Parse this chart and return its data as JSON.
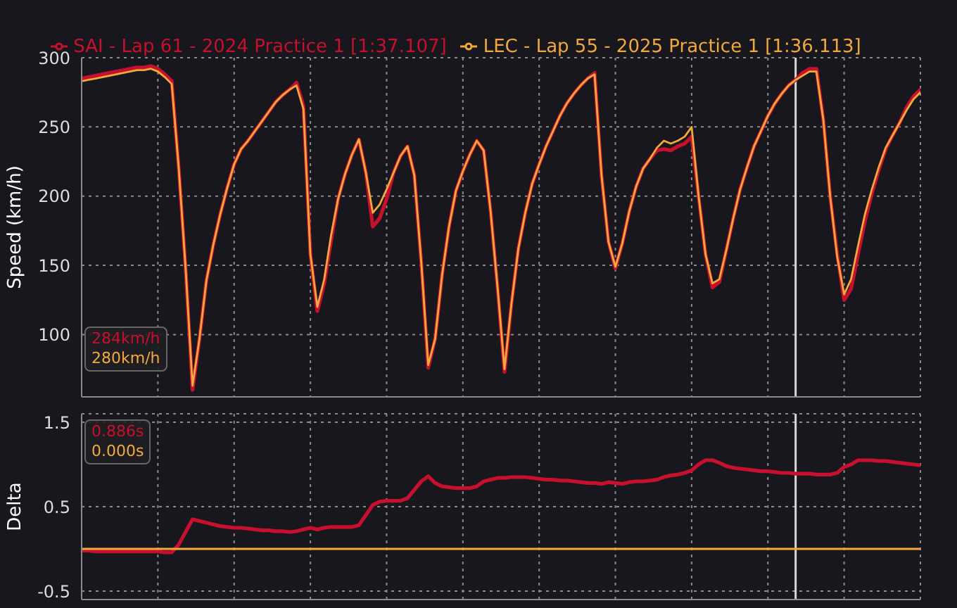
{
  "chart_data": [
    {
      "type": "line",
      "ylabel": "Speed (km/h)",
      "legend": "top",
      "grid": true,
      "tick_labels": "y",
      "marker": "none",
      "line_style": "solid",
      "ylim": [
        55,
        300
      ],
      "yticks": [
        100,
        150,
        200,
        250,
        300
      ],
      "categories": [
        null,
        null,
        null,
        null,
        null,
        null,
        null,
        null,
        null,
        null,
        null,
        null,
        null,
        null,
        null,
        null,
        null,
        null,
        null,
        null,
        null,
        null,
        null,
        null,
        null,
        null,
        null,
        null,
        null,
        null,
        null,
        null,
        null,
        null,
        null,
        null,
        null,
        null,
        null,
        null,
        null,
        null,
        null,
        null,
        null,
        null,
        null,
        null,
        null,
        null,
        null,
        null,
        null,
        null,
        null,
        null,
        null,
        null,
        null,
        null,
        null,
        null,
        null,
        null,
        null,
        null,
        null,
        null,
        null,
        null,
        null,
        null,
        null,
        null,
        null,
        null,
        null,
        null,
        null,
        null,
        null,
        null,
        null,
        null,
        null,
        null,
        null,
        null,
        null,
        null,
        null,
        null,
        null,
        null,
        null,
        null,
        null,
        null,
        null,
        null,
        null,
        null,
        null,
        null,
        null,
        null,
        null,
        null,
        null,
        null,
        null,
        null,
        null,
        null,
        null,
        null,
        null,
        null,
        null,
        null,
        null,
        null
      ],
      "series": [
        {
          "name": "SAI - Lap 61 - 2024 Practice 1 [1:37.107]",
          "color": "#c8102e",
          "values": [
            285,
            286,
            287,
            288,
            289,
            290,
            291,
            292,
            293,
            293,
            294,
            292,
            288,
            283,
            221,
            148,
            60,
            97,
            139,
            165,
            187,
            206,
            223,
            234,
            240,
            247,
            254,
            261,
            268,
            273,
            277,
            282,
            265,
            158,
            117,
            137,
            168,
            198,
            216,
            230,
            241,
            217,
            178,
            184,
            198,
            217,
            229,
            236,
            215,
            152,
            76,
            97,
            143,
            178,
            204,
            218,
            230,
            240,
            233,
            189,
            134,
            73,
            122,
            162,
            188,
            209,
            223,
            236,
            247,
            258,
            267,
            274,
            280,
            285,
            289,
            215,
            167,
            148,
            166,
            189,
            207,
            220,
            227,
            233,
            234,
            233,
            236,
            238,
            243,
            200,
            158,
            134,
            138,
            161,
            184,
            205,
            221,
            236,
            247,
            258,
            267,
            274,
            280,
            284,
            289,
            292,
            292,
            255,
            199,
            158,
            125,
            133,
            158,
            182,
            202,
            219,
            234,
            244,
            253,
            264,
            272,
            277
          ]
        },
        {
          "name": "LEC - Lap 55 - 2025 Practice 1 [1:36.113]",
          "color": "#f2a93b",
          "values": [
            283,
            284,
            285,
            286,
            287,
            288,
            289,
            290,
            291,
            291,
            292,
            290,
            286,
            281,
            221,
            148,
            63,
            97,
            139,
            165,
            187,
            206,
            223,
            234,
            240,
            247,
            254,
            261,
            268,
            273,
            277,
            280,
            263,
            158,
            120,
            140,
            172,
            198,
            216,
            230,
            241,
            217,
            188,
            194,
            205,
            217,
            229,
            236,
            215,
            152,
            78,
            97,
            143,
            178,
            204,
            218,
            230,
            240,
            233,
            189,
            134,
            75,
            122,
            162,
            188,
            209,
            223,
            236,
            247,
            258,
            267,
            274,
            280,
            285,
            288,
            215,
            167,
            149,
            166,
            189,
            207,
            220,
            227,
            235,
            240,
            238,
            240,
            243,
            250,
            200,
            158,
            137,
            140,
            161,
            184,
            205,
            221,
            236,
            247,
            258,
            267,
            274,
            280,
            284,
            287,
            290,
            290,
            255,
            199,
            156,
            129,
            140,
            164,
            187,
            205,
            221,
            235,
            244,
            253,
            262,
            270,
            275
          ]
        }
      ],
      "annotations": [
        "284km/h",
        "280km/h"
      ]
    },
    {
      "type": "line",
      "ylabel": "Delta",
      "grid": true,
      "tick_labels": "y",
      "marker": "none",
      "line_style": "solid",
      "ylim": [
        -0.6,
        1.6
      ],
      "yticks": [
        -0.5,
        0.5,
        1.5
      ],
      "categories": [
        null,
        null,
        null,
        null,
        null,
        null,
        null,
        null,
        null,
        null,
        null,
        null,
        null,
        null,
        null,
        null,
        null,
        null,
        null,
        null,
        null,
        null,
        null,
        null,
        null,
        null,
        null,
        null,
        null,
        null,
        null,
        null,
        null,
        null,
        null,
        null,
        null,
        null,
        null,
        null,
        null,
        null,
        null,
        null,
        null,
        null,
        null,
        null,
        null,
        null,
        null,
        null,
        null,
        null,
        null,
        null,
        null,
        null,
        null,
        null,
        null,
        null,
        null,
        null,
        null,
        null,
        null,
        null,
        null,
        null,
        null,
        null,
        null,
        null,
        null,
        null,
        null,
        null,
        null,
        null,
        null,
        null,
        null,
        null,
        null,
        null,
        null,
        null,
        null,
        null,
        null,
        null,
        null,
        null,
        null,
        null,
        null,
        null,
        null,
        null,
        null,
        null,
        null,
        null,
        null,
        null,
        null,
        null,
        null,
        null,
        null,
        null,
        null,
        null,
        null,
        null,
        null,
        null,
        null,
        null,
        null,
        null
      ],
      "series": [
        {
          "color": "#c8102e",
          "values": [
            -0.02,
            -0.02,
            -0.03,
            -0.03,
            -0.03,
            -0.03,
            -0.03,
            -0.03,
            -0.03,
            -0.03,
            -0.03,
            -0.03,
            -0.04,
            -0.04,
            0.05,
            0.2,
            0.35,
            0.33,
            0.31,
            0.29,
            0.27,
            0.26,
            0.25,
            0.25,
            0.24,
            0.23,
            0.22,
            0.22,
            0.21,
            0.21,
            0.2,
            0.21,
            0.23,
            0.25,
            0.23,
            0.25,
            0.26,
            0.26,
            0.26,
            0.26,
            0.28,
            0.4,
            0.52,
            0.56,
            0.57,
            0.57,
            0.57,
            0.6,
            0.7,
            0.8,
            0.86,
            0.78,
            0.74,
            0.73,
            0.72,
            0.72,
            0.72,
            0.74,
            0.8,
            0.82,
            0.84,
            0.84,
            0.85,
            0.85,
            0.85,
            0.84,
            0.83,
            0.82,
            0.82,
            0.81,
            0.81,
            0.8,
            0.79,
            0.78,
            0.78,
            0.77,
            0.79,
            0.78,
            0.77,
            0.79,
            0.8,
            0.8,
            0.81,
            0.82,
            0.85,
            0.87,
            0.88,
            0.9,
            0.93,
            1.0,
            1.05,
            1.05,
            1.02,
            0.98,
            0.96,
            0.95,
            0.94,
            0.93,
            0.92,
            0.92,
            0.91,
            0.9,
            0.9,
            0.89,
            0.89,
            0.89,
            0.88,
            0.88,
            0.88,
            0.9,
            0.97,
            1.0,
            1.05,
            1.05,
            1.05,
            1.04,
            1.04,
            1.03,
            1.02,
            1.01,
            1.0,
            0.99
          ]
        },
        {
          "color": "#f2a93b",
          "values": [
            0,
            0,
            0,
            0,
            0,
            0,
            0,
            0,
            0,
            0,
            0,
            0,
            0,
            0,
            0,
            0,
            0,
            0,
            0,
            0,
            0,
            0,
            0,
            0,
            0,
            0,
            0,
            0,
            0,
            0,
            0,
            0,
            0,
            0,
            0,
            0,
            0,
            0,
            0,
            0,
            0,
            0,
            0,
            0,
            0,
            0,
            0,
            0,
            0,
            0,
            0,
            0,
            0,
            0,
            0,
            0,
            0,
            0,
            0,
            0,
            0,
            0,
            0,
            0,
            0,
            0,
            0,
            0,
            0,
            0,
            0,
            0,
            0,
            0,
            0,
            0,
            0,
            0,
            0,
            0,
            0,
            0,
            0,
            0,
            0,
            0,
            0,
            0,
            0,
            0,
            0,
            0,
            0,
            0,
            0,
            0,
            0,
            0,
            0,
            0,
            0,
            0,
            0,
            0,
            0,
            0,
            0,
            0,
            0,
            0,
            0,
            0,
            0,
            0,
            0,
            0,
            0,
            0,
            0,
            0,
            0,
            0
          ]
        }
      ],
      "annotations": [
        "0.886s",
        "0.000s"
      ]
    }
  ]
}
